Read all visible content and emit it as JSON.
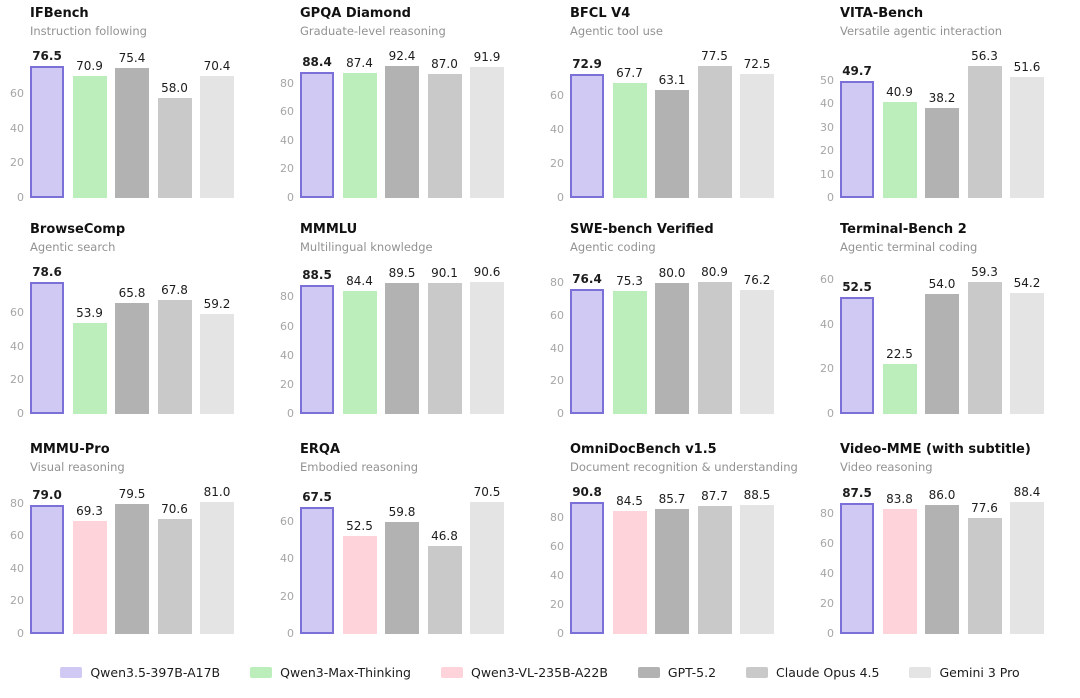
{
  "colors": {
    "background": "#ffffff",
    "title_text": "#111111",
    "subtitle_text": "#929292",
    "tick_text": "#a6a6a6",
    "value_text": "#1c1c1c"
  },
  "legend": [
    {
      "label": "Qwen3.5-397B-A17B",
      "fill": "#cfc9f3",
      "border": "#7b6fd8"
    },
    {
      "label": "Qwen3-Max-Thinking",
      "fill": "#bceebc"
    },
    {
      "label": "Qwen3-VL-235B-A22B",
      "fill": "#ffd3da"
    },
    {
      "label": "GPT-5.2",
      "fill": "#b2b2b2"
    },
    {
      "label": "Claude Opus 4.5",
      "fill": "#c9c9c9"
    },
    {
      "label": "Gemini 3 Pro",
      "fill": "#e4e4e4"
    }
  ],
  "chart_data": [
    {
      "type": "bar",
      "title": "IFBench",
      "subtitle": "Instruction following",
      "categories": [
        "Qwen3.5-397B-A17B",
        "Qwen3-Max-Thinking",
        "GPT-5.2",
        "Claude Opus 4.5",
        "Gemini 3 Pro"
      ],
      "model_indices": [
        0,
        1,
        3,
        4,
        5
      ],
      "values": [
        76.5,
        70.9,
        75.4,
        58.0,
        70.4
      ],
      "value_labels": [
        "76.5",
        "70.9",
        "75.4",
        "58.0",
        "70.4"
      ],
      "yticks": [
        0,
        20,
        40,
        60
      ],
      "grid": false,
      "legend_position": "figure-bottom"
    },
    {
      "type": "bar",
      "title": "GPQA Diamond",
      "subtitle": "Graduate-level reasoning",
      "categories": [
        "Qwen3.5-397B-A17B",
        "Qwen3-Max-Thinking",
        "GPT-5.2",
        "Claude Opus 4.5",
        "Gemini 3 Pro"
      ],
      "model_indices": [
        0,
        1,
        3,
        4,
        5
      ],
      "values": [
        88.4,
        87.4,
        92.4,
        87.0,
        91.9
      ],
      "value_labels": [
        "88.4",
        "87.4",
        "92.4",
        "87.0",
        "91.9"
      ],
      "yticks": [
        0,
        20,
        40,
        60,
        80
      ],
      "grid": false,
      "legend_position": "figure-bottom"
    },
    {
      "type": "bar",
      "title": "BFCL V4",
      "subtitle": "Agentic tool use",
      "categories": [
        "Qwen3.5-397B-A17B",
        "Qwen3-Max-Thinking",
        "GPT-5.2",
        "Claude Opus 4.5",
        "Gemini 3 Pro"
      ],
      "model_indices": [
        0,
        1,
        3,
        4,
        5
      ],
      "values": [
        72.9,
        67.7,
        63.1,
        77.5,
        72.5
      ],
      "value_labels": [
        "72.9",
        "67.7",
        "63.1",
        "77.5",
        "72.5"
      ],
      "yticks": [
        0,
        20,
        40,
        60
      ],
      "grid": false,
      "legend_position": "figure-bottom"
    },
    {
      "type": "bar",
      "title": "VITA-Bench",
      "subtitle": "Versatile agentic interaction",
      "categories": [
        "Qwen3.5-397B-A17B",
        "Qwen3-Max-Thinking",
        "GPT-5.2",
        "Claude Opus 4.5",
        "Gemini 3 Pro"
      ],
      "model_indices": [
        0,
        1,
        3,
        4,
        5
      ],
      "values": [
        49.7,
        40.9,
        38.2,
        56.3,
        51.6
      ],
      "value_labels": [
        "49.7",
        "40.9",
        "38.2",
        "56.3",
        "51.6"
      ],
      "yticks": [
        0,
        10,
        20,
        30,
        40,
        50
      ],
      "grid": false,
      "legend_position": "figure-bottom"
    },
    {
      "type": "bar",
      "title": "BrowseComp",
      "subtitle": "Agentic search",
      "categories": [
        "Qwen3.5-397B-A17B",
        "Qwen3-Max-Thinking",
        "GPT-5.2",
        "Claude Opus 4.5",
        "Gemini 3 Pro"
      ],
      "model_indices": [
        0,
        1,
        3,
        4,
        5
      ],
      "values": [
        78.6,
        53.9,
        65.8,
        67.8,
        59.2
      ],
      "value_labels": [
        "78.6",
        "53.9",
        "65.8",
        "67.8",
        "59.2"
      ],
      "yticks": [
        0,
        20,
        40,
        60
      ],
      "grid": false,
      "legend_position": "figure-bottom"
    },
    {
      "type": "bar",
      "title": "MMMLU",
      "subtitle": "Multilingual knowledge",
      "categories": [
        "Qwen3.5-397B-A17B",
        "Qwen3-Max-Thinking",
        "GPT-5.2",
        "Claude Opus 4.5",
        "Gemini 3 Pro"
      ],
      "model_indices": [
        0,
        1,
        3,
        4,
        5
      ],
      "values": [
        88.5,
        84.4,
        89.5,
        90.1,
        90.6
      ],
      "value_labels": [
        "88.5",
        "84.4",
        "89.5",
        "90.1",
        "90.6"
      ],
      "yticks": [
        0,
        20,
        40,
        60,
        80
      ],
      "grid": false,
      "legend_position": "figure-bottom"
    },
    {
      "type": "bar",
      "title": "SWE-bench Verified",
      "subtitle": "Agentic coding",
      "categories": [
        "Qwen3.5-397B-A17B",
        "Qwen3-Max-Thinking",
        "GPT-5.2",
        "Claude Opus 4.5",
        "Gemini 3 Pro"
      ],
      "model_indices": [
        0,
        1,
        3,
        4,
        5
      ],
      "values": [
        76.4,
        75.3,
        80.0,
        80.9,
        76.2
      ],
      "value_labels": [
        "76.4",
        "75.3",
        "80.0",
        "80.9",
        "76.2"
      ],
      "yticks": [
        0,
        20,
        40,
        60,
        80
      ],
      "grid": false,
      "legend_position": "figure-bottom"
    },
    {
      "type": "bar",
      "title": "Terminal-Bench 2",
      "subtitle": "Agentic terminal coding",
      "categories": [
        "Qwen3.5-397B-A17B",
        "Qwen3-Max-Thinking",
        "GPT-5.2",
        "Claude Opus 4.5",
        "Gemini 3 Pro"
      ],
      "model_indices": [
        0,
        1,
        3,
        4,
        5
      ],
      "values": [
        52.5,
        22.5,
        54.0,
        59.3,
        54.2
      ],
      "value_labels": [
        "52.5",
        "22.5",
        "54.0",
        "59.3",
        "54.2"
      ],
      "yticks": [
        0,
        20,
        40,
        60
      ],
      "grid": false,
      "legend_position": "figure-bottom"
    },
    {
      "type": "bar",
      "title": "MMMU-Pro",
      "subtitle": "Visual reasoning",
      "categories": [
        "Qwen3.5-397B-A17B",
        "Qwen3-VL-235B-A22B",
        "GPT-5.2",
        "Claude Opus 4.5",
        "Gemini 3 Pro"
      ],
      "model_indices": [
        0,
        2,
        3,
        4,
        5
      ],
      "values": [
        79.0,
        69.3,
        79.5,
        70.6,
        81.0
      ],
      "value_labels": [
        "79.0",
        "69.3",
        "79.5",
        "70.6",
        "81.0"
      ],
      "yticks": [
        0,
        20,
        40,
        60,
        80
      ],
      "grid": false,
      "legend_position": "figure-bottom"
    },
    {
      "type": "bar",
      "title": "ERQA",
      "subtitle": "Embodied reasoning",
      "categories": [
        "Qwen3.5-397B-A17B",
        "Qwen3-VL-235B-A22B",
        "GPT-5.2",
        "Claude Opus 4.5",
        "Gemini 3 Pro"
      ],
      "model_indices": [
        0,
        2,
        3,
        4,
        5
      ],
      "values": [
        67.5,
        52.5,
        59.8,
        46.8,
        70.5
      ],
      "value_labels": [
        "67.5",
        "52.5",
        "59.8",
        "46.8",
        "70.5"
      ],
      "yticks": [
        0,
        20,
        40,
        60
      ],
      "grid": false,
      "legend_position": "figure-bottom"
    },
    {
      "type": "bar",
      "title": "OmniDocBench v1.5",
      "subtitle": "Document recognition & understanding",
      "categories": [
        "Qwen3.5-397B-A17B",
        "Qwen3-VL-235B-A22B",
        "GPT-5.2",
        "Claude Opus 4.5",
        "Gemini 3 Pro"
      ],
      "model_indices": [
        0,
        2,
        3,
        4,
        5
      ],
      "values": [
        90.8,
        84.5,
        85.7,
        87.7,
        88.5
      ],
      "value_labels": [
        "90.8",
        "84.5",
        "85.7",
        "87.7",
        "88.5"
      ],
      "yticks": [
        0,
        20,
        40,
        60,
        80
      ],
      "grid": false,
      "legend_position": "figure-bottom"
    },
    {
      "type": "bar",
      "title": "Video-MME (with subtitle)",
      "subtitle": "Video reasoning",
      "categories": [
        "Qwen3.5-397B-A17B",
        "Qwen3-VL-235B-A22B",
        "GPT-5.2",
        "Claude Opus 4.5",
        "Gemini 3 Pro"
      ],
      "model_indices": [
        0,
        2,
        3,
        4,
        5
      ],
      "values": [
        87.5,
        83.8,
        86.0,
        77.6,
        88.4
      ],
      "value_labels": [
        "87.5",
        "83.8",
        "86.0",
        "77.6",
        "88.4"
      ],
      "yticks": [
        0,
        20,
        40,
        60,
        80
      ],
      "grid": false,
      "legend_position": "figure-bottom"
    }
  ]
}
